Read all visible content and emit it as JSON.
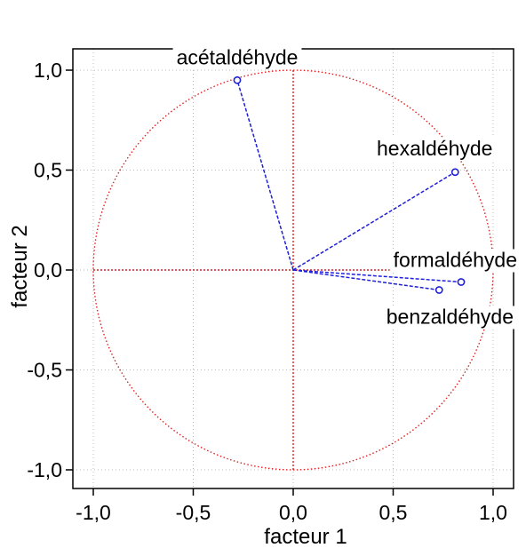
{
  "chart_data": {
    "type": "scatter",
    "xlabel": "facteur 1",
    "ylabel": "facteur 2",
    "xlim": [
      -1.0,
      1.0
    ],
    "ylim": [
      -1.0,
      1.0
    ],
    "x_ticks": [
      "-1,0",
      "-0,5",
      "0,0",
      "0,5",
      "1,0"
    ],
    "y_ticks": [
      "1,0",
      "0,5",
      "0,0",
      "-0,5",
      "-1,0"
    ],
    "x_tick_values": [
      -1.0,
      -0.5,
      0.0,
      0.5,
      1.0
    ],
    "y_tick_values": [
      1.0,
      0.5,
      0.0,
      -0.5,
      -1.0
    ],
    "grid": true,
    "unit_circle": true,
    "points": [
      {
        "label": "acétaldéhyde",
        "x": -0.28,
        "y": 0.95
      },
      {
        "label": "hexaldéhyde",
        "x": 0.81,
        "y": 0.49
      },
      {
        "label": "formaldéhyde",
        "x": 0.84,
        "y": -0.06
      },
      {
        "label": "benzaldéhyde",
        "x": 0.73,
        "y": -0.1
      }
    ],
    "colors": {
      "vectors": "#1f1fd6",
      "circle": "#e02020",
      "axes_cross": "#e02020",
      "grid": "#b8b8b8",
      "frame": "#000000"
    }
  }
}
